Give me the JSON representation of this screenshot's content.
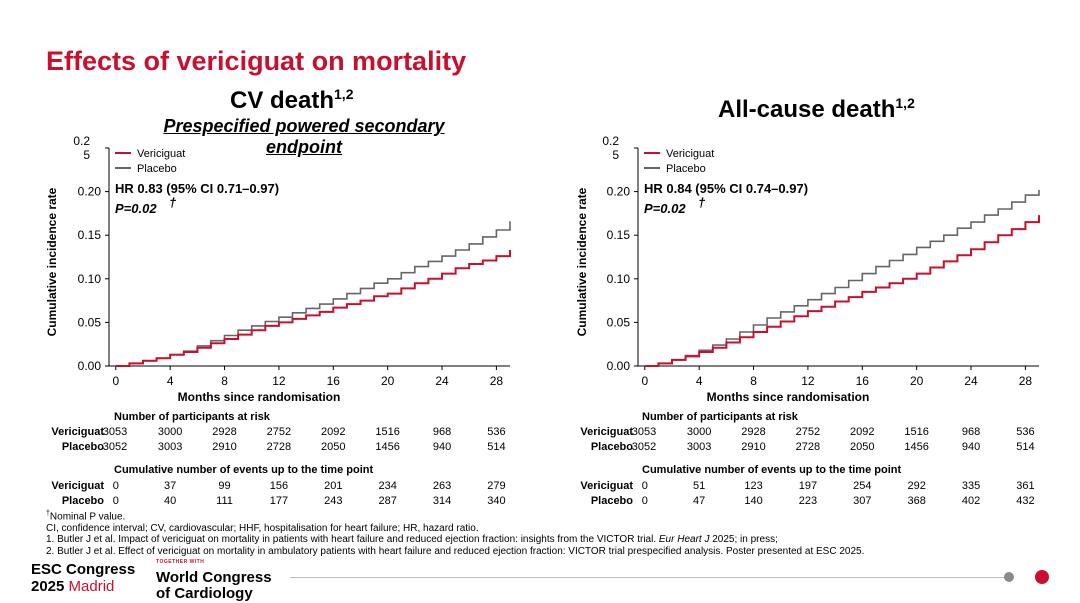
{
  "main_title": "Effects of vericiguat on mortality",
  "colors": {
    "accent": "#c8102e",
    "placebo": "#666666"
  },
  "chart_data": [
    {
      "type": "line",
      "title": "CV death",
      "title_sup": "1,2",
      "subtitle": "Prespecified powered secondary endpoint",
      "xlabel": "Months since randomisation",
      "ylabel": "Cumulative incidence rate",
      "xlim": [
        -0.5,
        29
      ],
      "ylim": [
        0,
        0.25
      ],
      "xticks": [
        "0",
        "4",
        "8",
        "12",
        "16",
        "20",
        "24",
        "28"
      ],
      "yticks": [
        "0.00",
        "0.05",
        "0.10",
        "0.15",
        "0.20",
        "0.2\n5"
      ],
      "legend": [
        "Vericiguat",
        "Placebo"
      ],
      "hr_text": "HR 0.83 (95% CI 0.71–0.97)",
      "p_text": "P=0.02",
      "p_sup": "†",
      "series": [
        {
          "name": "Vericiguat",
          "color": "#c8102e",
          "x": [
            0,
            1,
            2,
            3,
            4,
            5,
            6,
            7,
            8,
            9,
            10,
            11,
            12,
            13,
            14,
            15,
            16,
            17,
            18,
            19,
            20,
            21,
            22,
            23,
            24,
            25,
            26,
            27,
            28,
            29
          ],
          "y": [
            0,
            0.003,
            0.006,
            0.009,
            0.013,
            0.016,
            0.021,
            0.026,
            0.031,
            0.036,
            0.041,
            0.046,
            0.05,
            0.054,
            0.058,
            0.062,
            0.067,
            0.071,
            0.075,
            0.08,
            0.083,
            0.089,
            0.095,
            0.1,
            0.106,
            0.112,
            0.117,
            0.121,
            0.126,
            0.133
          ]
        },
        {
          "name": "Placebo",
          "color": "#666666",
          "x": [
            0,
            1,
            2,
            3,
            4,
            5,
            6,
            7,
            8,
            9,
            10,
            11,
            12,
            13,
            14,
            15,
            16,
            17,
            18,
            19,
            20,
            21,
            22,
            23,
            24,
            25,
            26,
            27,
            28,
            29
          ],
          "y": [
            0,
            0.003,
            0.006,
            0.009,
            0.013,
            0.017,
            0.023,
            0.029,
            0.035,
            0.041,
            0.046,
            0.051,
            0.056,
            0.061,
            0.066,
            0.071,
            0.077,
            0.083,
            0.089,
            0.095,
            0.1,
            0.107,
            0.114,
            0.12,
            0.126,
            0.133,
            0.14,
            0.148,
            0.156,
            0.166
          ]
        }
      ]
    },
    {
      "type": "line",
      "title": "All-cause death",
      "title_sup": "1,2",
      "xlabel": "Months since randomisation",
      "ylabel": "Cumulative incidence rate",
      "xlim": [
        -0.5,
        29
      ],
      "ylim": [
        0,
        0.25
      ],
      "xticks": [
        "0",
        "4",
        "8",
        "12",
        "16",
        "20",
        "24",
        "28"
      ],
      "yticks": [
        "0.00",
        "0.05",
        "0.10",
        "0.15",
        "0.20",
        "0.2\n5"
      ],
      "legend": [
        "Vericiguat",
        "Placebo"
      ],
      "hr_text": "HR 0.84 (95% CI 0.74–0.97)",
      "p_text": "P=0.02",
      "p_sup": "†",
      "series": [
        {
          "name": "Vericiguat",
          "color": "#c8102e",
          "x": [
            0,
            1,
            2,
            3,
            4,
            5,
            6,
            7,
            8,
            9,
            10,
            11,
            12,
            13,
            14,
            15,
            16,
            17,
            18,
            19,
            20,
            21,
            22,
            23,
            24,
            25,
            26,
            27,
            28,
            29
          ],
          "y": [
            0,
            0.003,
            0.007,
            0.011,
            0.016,
            0.021,
            0.027,
            0.033,
            0.039,
            0.045,
            0.051,
            0.057,
            0.063,
            0.068,
            0.074,
            0.079,
            0.085,
            0.09,
            0.095,
            0.1,
            0.106,
            0.113,
            0.12,
            0.127,
            0.134,
            0.142,
            0.15,
            0.157,
            0.165,
            0.173
          ]
        },
        {
          "name": "Placebo",
          "color": "#666666",
          "x": [
            0,
            1,
            2,
            3,
            4,
            5,
            6,
            7,
            8,
            9,
            10,
            11,
            12,
            13,
            14,
            15,
            16,
            17,
            18,
            19,
            20,
            21,
            22,
            23,
            24,
            25,
            26,
            27,
            28,
            29
          ],
          "y": [
            0,
            0.003,
            0.007,
            0.012,
            0.018,
            0.024,
            0.031,
            0.039,
            0.047,
            0.055,
            0.062,
            0.069,
            0.076,
            0.083,
            0.09,
            0.098,
            0.106,
            0.114,
            0.121,
            0.128,
            0.136,
            0.143,
            0.15,
            0.158,
            0.165,
            0.173,
            0.18,
            0.188,
            0.196,
            0.202
          ]
        }
      ]
    }
  ],
  "tables": [
    {
      "risk_title": "Number of participants at risk",
      "events_title": "Cumulative number of events up to the time point",
      "risk": [
        {
          "label": "Vericiguat",
          "values": [
            "3053",
            "3000",
            "2928",
            "2752",
            "2092",
            "1516",
            "968",
            "536"
          ]
        },
        {
          "label": "Placebo",
          "values": [
            "3052",
            "3003",
            "2910",
            "2728",
            "2050",
            "1456",
            "940",
            "514"
          ]
        }
      ],
      "events": [
        {
          "label": "Vericiguat",
          "values": [
            "0",
            "37",
            "99",
            "156",
            "201",
            "234",
            "263",
            "279"
          ]
        },
        {
          "label": "Placebo",
          "values": [
            "0",
            "40",
            "111",
            "177",
            "243",
            "287",
            "314",
            "340"
          ]
        }
      ]
    },
    {
      "risk_title": "Number of participants at risk",
      "events_title": "Cumulative number of events up to the time point",
      "risk": [
        {
          "label": "Vericiguat",
          "values": [
            "3053",
            "3000",
            "2928",
            "2752",
            "2092",
            "1516",
            "968",
            "536"
          ]
        },
        {
          "label": "Placebo",
          "values": [
            "3052",
            "3003",
            "2910",
            "2728",
            "2050",
            "1456",
            "940",
            "514"
          ]
        }
      ],
      "events": [
        {
          "label": "Vericiguat",
          "values": [
            "0",
            "51",
            "123",
            "197",
            "254",
            "292",
            "335",
            "361"
          ]
        },
        {
          "label": "Placebo",
          "values": [
            "0",
            "47",
            "140",
            "223",
            "307",
            "368",
            "402",
            "432"
          ]
        }
      ]
    }
  ],
  "footnotes": {
    "nominal_sup": "†",
    "nominal": "Nominal P value.",
    "abbrev": "CI, confidence interval; CV, cardiovascular; HHF, hospitalisation for heart failure; HR, hazard ratio.",
    "ref1_pre": "1. Butler J et al. Impact of vericiguat on mortality in patients with heart failure and reduced ejection fraction: insights from the VICTOR trial. ",
    "ref1_journal": "Eur Heart J",
    "ref1_post": " 2025; in press;",
    "ref2": "2. Butler J et al. Effect of vericiguat on mortality in ambulatory patients with heart failure and reduced ejection fraction: VICTOR trial prespecified analysis. Poster presented at ESC 2025."
  },
  "footer": {
    "esc_line1": "ESC Congress",
    "esc_year": "2025",
    "esc_city": "Madrid",
    "together": "TOGETHER WITH",
    "wcc_line1": "World Congress",
    "wcc_line2": "of Cardiology"
  }
}
